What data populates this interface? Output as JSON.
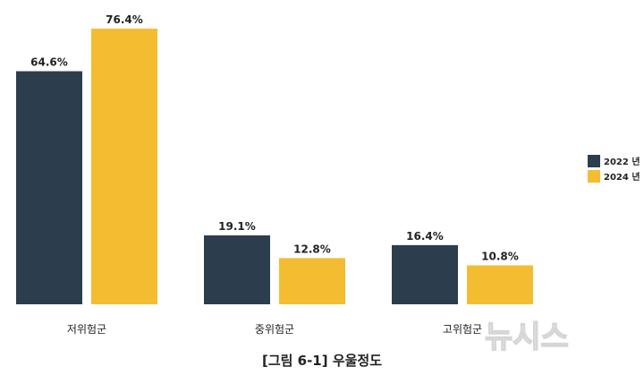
{
  "chart_data": {
    "type": "bar",
    "categories": [
      "저위험군",
      "중위험군",
      "고위험군"
    ],
    "series": [
      {
        "name": "2022 년",
        "values": [
          64.6,
          19.1,
          16.4
        ],
        "labels": [
          "64.6%",
          "19.1%",
          "16.4%"
        ],
        "color": "#2c3e4e"
      },
      {
        "name": "2024 년",
        "values": [
          76.4,
          12.8,
          10.8
        ],
        "labels": [
          "76.4%",
          "12.8%",
          "10.8%"
        ],
        "color": "#f4bc31"
      }
    ],
    "ylim": [
      0,
      80
    ],
    "grid": false,
    "legend": "right"
  },
  "caption": "[그림 6-1] 우울정도",
  "watermark": "뉴시스"
}
